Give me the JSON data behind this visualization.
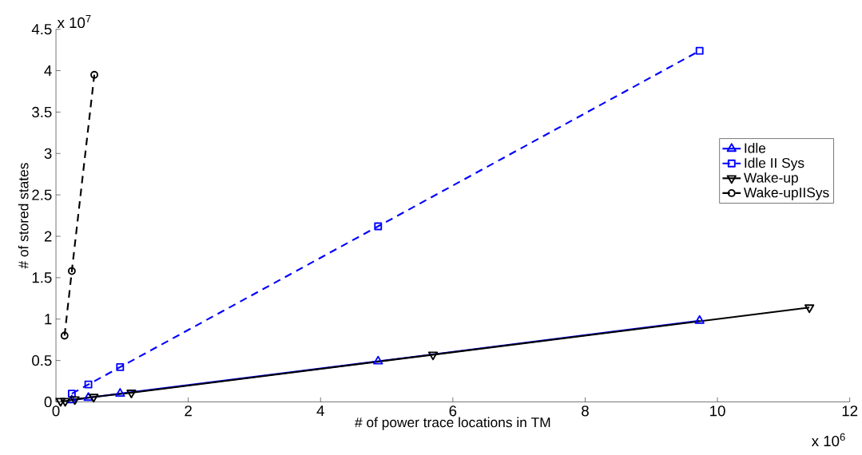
{
  "chart_data": {
    "type": "line",
    "xlabel": "# of power trace locations in TM",
    "ylabel": "# of stored states",
    "annotations": [
      "x 10$^{7}$",
      "x 10$^{6}$"
    ],
    "xlim": [
      0,
      12
    ],
    "ylim": [
      0,
      4.5
    ],
    "xticks": [
      0,
      2,
      4,
      6,
      8,
      10,
      12
    ],
    "yticks": [
      0,
      0.5,
      1,
      1.5,
      2,
      2.5,
      3,
      3.5,
      4,
      4.5
    ],
    "grid": false,
    "legend": "right",
    "series": [
      {
        "name": "Idle",
        "color": "#0000ff",
        "marker": "triangle",
        "line_style": "solid",
        "x": [
          0.24,
          0.49,
          0.97,
          4.87,
          9.73
        ],
        "values": [
          0.02,
          0.05,
          0.1,
          0.49,
          0.98
        ]
      },
      {
        "name": "Idle II Sys",
        "color": "#0000ff",
        "marker": "square",
        "line_style": "dashed",
        "x": [
          0.24,
          0.49,
          0.97,
          4.87,
          9.73
        ],
        "values": [
          0.1,
          0.21,
          0.42,
          2.12,
          4.24
        ]
      },
      {
        "name": "Wake-up",
        "color": "#000000",
        "marker": "triangle down",
        "line_style": "solid",
        "x": [
          0.07,
          0.14,
          0.285,
          0.57,
          1.14,
          5.7,
          11.39
        ],
        "values": [
          0.01,
          0.01,
          0.03,
          0.06,
          0.11,
          0.57,
          1.14
        ]
      },
      {
        "name": "Wake-upIISys",
        "color": "#000000",
        "marker": "circle",
        "line_style": "dashed",
        "x": [
          0.13,
          0.24,
          0.58
        ],
        "values": [
          0.8,
          1.58,
          3.95
        ]
      }
    ]
  }
}
